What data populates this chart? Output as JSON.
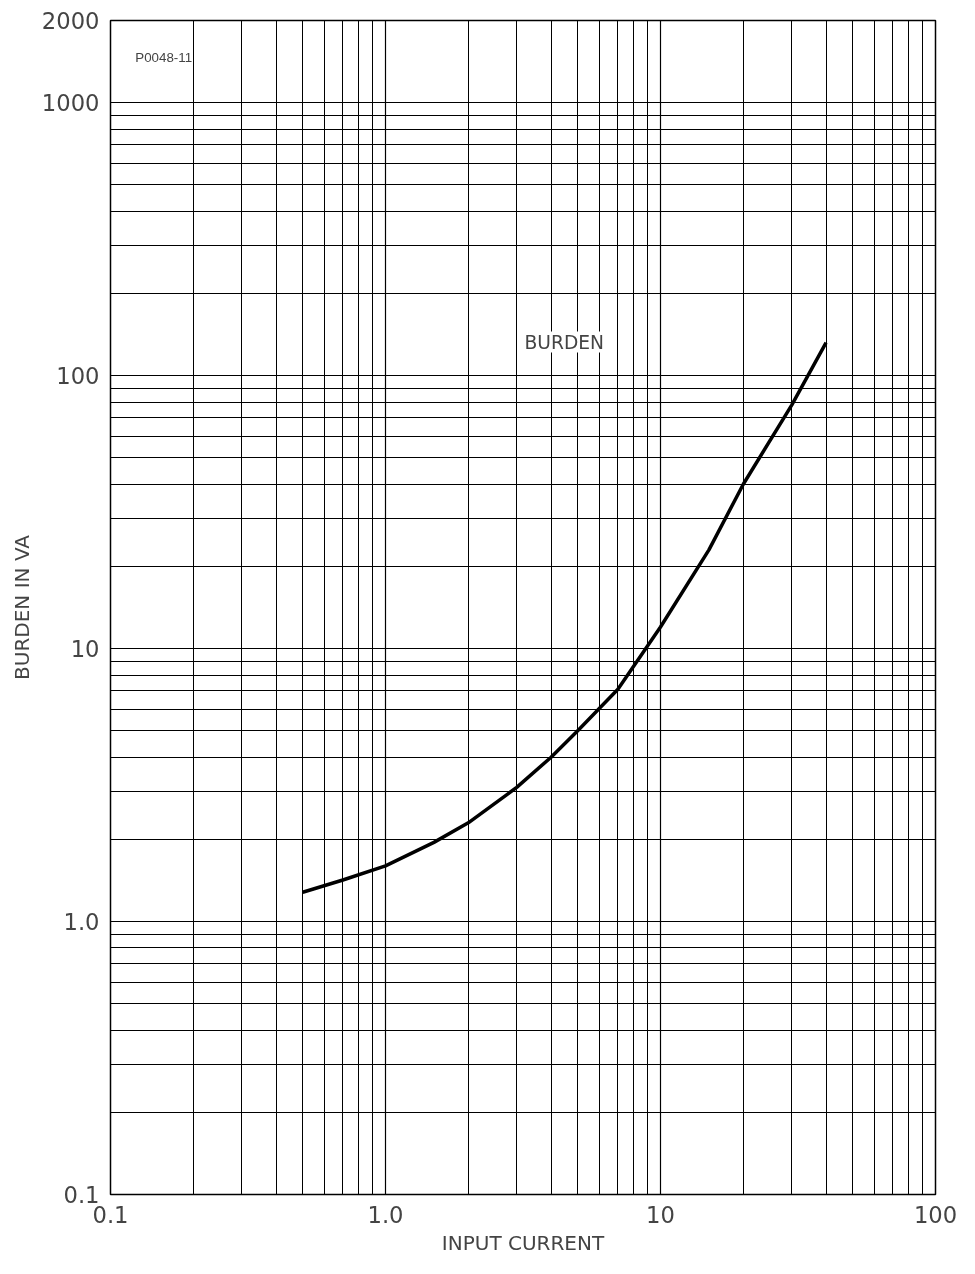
{
  "chart_data": {
    "type": "line",
    "xlabel": "INPUT CURRENT",
    "ylabel": "BURDEN IN VA",
    "annotations": [
      "P0048-11",
      "BURDEN"
    ],
    "x": [
      0.5,
      0.7,
      1,
      1.5,
      2,
      3,
      4,
      5,
      7,
      10,
      15,
      20,
      30,
      40
    ],
    "series": [
      {
        "color": "#000000",
        "values": [
          1.28,
          1.42,
          1.6,
          1.95,
          2.3,
          3.1,
          4.0,
          5.0,
          7.1,
          12,
          23,
          40,
          78,
          132
        ]
      }
    ],
    "log": "xy",
    "xlim": [
      0.1,
      100
    ],
    "ylim": [
      0.1,
      2000
    ],
    "xticks": [
      {
        "value": 0.1,
        "label": "0.1"
      },
      {
        "value": 1,
        "label": "1.0"
      },
      {
        "value": 10,
        "label": "10"
      },
      {
        "value": 100,
        "label": "100"
      }
    ],
    "yticks": [
      {
        "value": 0.1,
        "label": "0.1"
      },
      {
        "value": 1,
        "label": "1.0"
      },
      {
        "value": 10,
        "label": "10"
      },
      {
        "value": 100,
        "label": "100"
      },
      {
        "value": 1000,
        "label": "1000"
      },
      {
        "value": 2000,
        "label": "2000"
      }
    ],
    "grid": true,
    "marker": "none",
    "line_style": "solid"
  }
}
